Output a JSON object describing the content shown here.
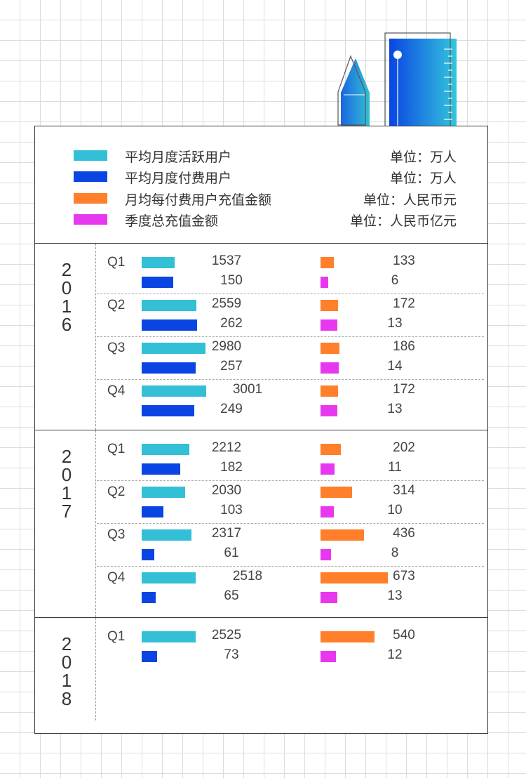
{
  "colors": {
    "active": "#33bfd6",
    "paying": "#0a45e3",
    "arpu": "#ff7f2a",
    "total": "#e838ef"
  },
  "legend": [
    {
      "label": "平均月度活跃用户",
      "unit": "单位：万人",
      "color": "#33bfd6"
    },
    {
      "label": "平均月度付费用户",
      "unit": "单位：万人",
      "color": "#0a45e3"
    },
    {
      "label": "月均每付费用户充值金额",
      "unit": "单位：人民币元",
      "color": "#ff7f2a"
    },
    {
      "label": "季度总充值金额",
      "unit": "单位：人民币亿元",
      "color": "#e838ef"
    }
  ],
  "chart_data": {
    "type": "bar",
    "series_names": [
      "平均月度活跃用户",
      "平均月度付费用户",
      "月均每付费用户充值金额",
      "季度总充值金额"
    ],
    "units": [
      "万人",
      "万人",
      "人民币元",
      "人民币亿元"
    ],
    "years": [
      {
        "year": "2016",
        "quarters": [
          {
            "q": "Q1",
            "active": 1537,
            "paying": 150,
            "arpu": 133,
            "total": 6
          },
          {
            "q": "Q2",
            "active": 2559,
            "paying": 262,
            "arpu": 172,
            "total": 13
          },
          {
            "q": "Q3",
            "active": 2980,
            "paying": 257,
            "arpu": 186,
            "total": 14
          },
          {
            "q": "Q4",
            "active": 3001,
            "paying": 249,
            "arpu": 172,
            "total": 13
          }
        ]
      },
      {
        "year": "2017",
        "quarters": [
          {
            "q": "Q1",
            "active": 2212,
            "paying": 182,
            "arpu": 202,
            "total": 11
          },
          {
            "q": "Q2",
            "active": 2030,
            "paying": 103,
            "arpu": 314,
            "total": 10
          },
          {
            "q": "Q3",
            "active": 2317,
            "paying": 61,
            "arpu": 436,
            "total": 8
          },
          {
            "q": "Q4",
            "active": 2518,
            "paying": 65,
            "arpu": 673,
            "total": 13
          }
        ]
      },
      {
        "year": "2018",
        "quarters": [
          {
            "q": "Q1",
            "active": 2525,
            "paying": 73,
            "arpu": 540,
            "total": 12
          }
        ]
      }
    ]
  }
}
